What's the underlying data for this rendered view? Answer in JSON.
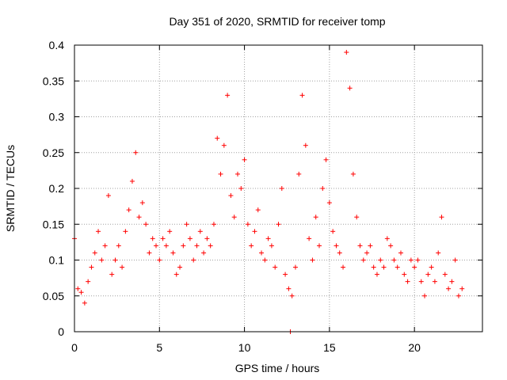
{
  "chart_data": {
    "type": "scatter",
    "title": "Day 351 of 2020, SRMTID for receiver tomp",
    "xlabel": "GPS time / hours",
    "ylabel": "SRMTID / TECUs",
    "xlim": [
      0,
      24
    ],
    "ylim": [
      0,
      0.4
    ],
    "x_ticks": [
      0,
      5,
      10,
      15,
      20
    ],
    "x_tick_labels": [
      "0",
      "5",
      "10",
      "15",
      "20"
    ],
    "y_ticks": [
      0,
      0.05,
      0.1,
      0.15,
      0.2,
      0.25,
      0.3,
      0.35,
      0.4
    ],
    "y_tick_labels": [
      "0",
      "0.05",
      "0.1",
      "0.15",
      "0.2",
      "0.25",
      "0.3",
      "0.35",
      "0.4"
    ],
    "grid": true,
    "marker": "+",
    "colors": {
      "series": "#ff0000",
      "grid": "#a0a0a0",
      "axis": "#000000"
    },
    "series": [
      {
        "name": "SRMTID",
        "x": [
          0.0,
          0.2,
          0.4,
          0.6,
          0.8,
          1.0,
          1.2,
          1.4,
          1.6,
          1.8,
          2.0,
          2.2,
          2.4,
          2.6,
          2.8,
          3.0,
          3.2,
          3.4,
          3.6,
          3.8,
          4.0,
          4.2,
          4.4,
          4.6,
          4.8,
          5.0,
          5.2,
          5.4,
          5.6,
          5.8,
          6.0,
          6.2,
          6.4,
          6.6,
          6.8,
          7.0,
          7.2,
          7.4,
          7.6,
          7.8,
          8.0,
          8.2,
          8.4,
          8.6,
          8.8,
          9.0,
          9.2,
          9.4,
          9.6,
          9.8,
          10.0,
          10.2,
          10.4,
          10.6,
          10.8,
          11.0,
          11.2,
          11.4,
          11.6,
          11.8,
          12.0,
          12.2,
          12.4,
          12.6,
          12.7,
          12.8,
          13.0,
          13.2,
          13.4,
          13.6,
          13.8,
          14.0,
          14.2,
          14.4,
          14.6,
          14.8,
          15.0,
          15.2,
          15.4,
          15.6,
          15.8,
          16.0,
          16.2,
          16.4,
          16.6,
          16.8,
          17.0,
          17.2,
          17.4,
          17.6,
          17.8,
          18.0,
          18.2,
          18.4,
          18.6,
          18.8,
          19.0,
          19.2,
          19.4,
          19.6,
          19.8,
          20.0,
          20.2,
          20.4,
          20.6,
          20.8,
          21.0,
          21.2,
          21.4,
          21.6,
          21.8,
          22.0,
          22.2,
          22.4,
          22.6,
          22.8
        ],
        "y": [
          0.13,
          0.06,
          0.055,
          0.04,
          0.07,
          0.09,
          0.11,
          0.14,
          0.1,
          0.12,
          0.19,
          0.08,
          0.1,
          0.12,
          0.09,
          0.14,
          0.17,
          0.21,
          0.25,
          0.16,
          0.18,
          0.15,
          0.11,
          0.13,
          0.12,
          0.1,
          0.13,
          0.12,
          0.14,
          0.11,
          0.08,
          0.09,
          0.12,
          0.15,
          0.13,
          0.1,
          0.12,
          0.14,
          0.11,
          0.13,
          0.12,
          0.15,
          0.27,
          0.22,
          0.26,
          0.33,
          0.19,
          0.16,
          0.22,
          0.2,
          0.24,
          0.15,
          0.12,
          0.14,
          0.17,
          0.11,
          0.1,
          0.13,
          0.12,
          0.09,
          0.15,
          0.2,
          0.08,
          0.06,
          0.0,
          0.05,
          0.09,
          0.22,
          0.33,
          0.26,
          0.13,
          0.1,
          0.16,
          0.12,
          0.2,
          0.24,
          0.18,
          0.14,
          0.12,
          0.11,
          0.09,
          0.39,
          0.34,
          0.22,
          0.16,
          0.12,
          0.1,
          0.11,
          0.12,
          0.09,
          0.08,
          0.1,
          0.09,
          0.13,
          0.12,
          0.1,
          0.09,
          0.11,
          0.08,
          0.07,
          0.1,
          0.09,
          0.1,
          0.07,
          0.05,
          0.08,
          0.09,
          0.07,
          0.11,
          0.16,
          0.08,
          0.06,
          0.07,
          0.1,
          0.05,
          0.06
        ]
      }
    ]
  }
}
